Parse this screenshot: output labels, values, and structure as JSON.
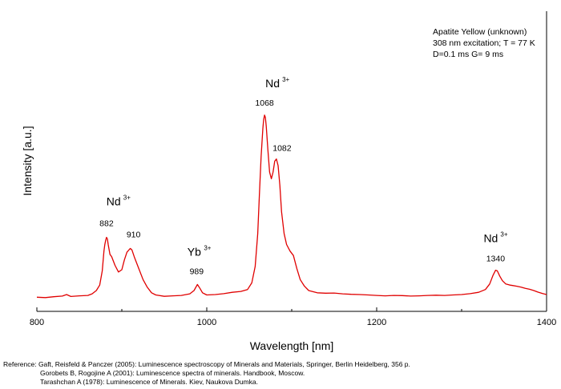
{
  "chart_data": {
    "type": "line",
    "xlabel": "Wavelength [nm]",
    "ylabel": "Intensity [a.u.]",
    "xlim": [
      800,
      1400
    ],
    "ylim": [
      0,
      100
    ],
    "x_ticks": [
      800,
      1000,
      1200,
      1400
    ],
    "x_tick_labels": [
      "800",
      "1000",
      "1200",
      "1400"
    ],
    "grid": false,
    "info_lines": [
      "Apatite Yellow (unknown)",
      "308 nm excitation; T = 77 K",
      "D=0.1 ms G= 9 ms"
    ],
    "series": [
      {
        "color": "#e00000",
        "points": [
          [
            800,
            1.0
          ],
          [
            810,
            0.8
          ],
          [
            820,
            1.2
          ],
          [
            830,
            1.5
          ],
          [
            835,
            2.2
          ],
          [
            840,
            1.3
          ],
          [
            850,
            1.6
          ],
          [
            860,
            1.8
          ],
          [
            865,
            2.5
          ],
          [
            870,
            4.0
          ],
          [
            874,
            6.5
          ],
          [
            877,
            13.0
          ],
          [
            879,
            22.0
          ],
          [
            880,
            25.0
          ],
          [
            881,
            27.0
          ],
          [
            882,
            28.3
          ],
          [
            883,
            27.5
          ],
          [
            884,
            25.0
          ],
          [
            886,
            20.5
          ],
          [
            888,
            19.5
          ],
          [
            892,
            15.5
          ],
          [
            896,
            12.5
          ],
          [
            900,
            13.5
          ],
          [
            903,
            18.0
          ],
          [
            906,
            21.5
          ],
          [
            909,
            22.8
          ],
          [
            910,
            23.2
          ],
          [
            912,
            22.5
          ],
          [
            915,
            19.0
          ],
          [
            920,
            14.0
          ],
          [
            925,
            9.0
          ],
          [
            930,
            5.5
          ],
          [
            935,
            3.0
          ],
          [
            940,
            2.0
          ],
          [
            950,
            1.4
          ],
          [
            960,
            1.6
          ],
          [
            970,
            1.8
          ],
          [
            980,
            2.5
          ],
          [
            985,
            4.0
          ],
          [
            989,
            6.8
          ],
          [
            992,
            5.0
          ],
          [
            995,
            3.0
          ],
          [
            1000,
            2.0
          ],
          [
            1010,
            2.2
          ],
          [
            1020,
            2.6
          ],
          [
            1030,
            3.2
          ],
          [
            1040,
            3.6
          ],
          [
            1048,
            4.5
          ],
          [
            1053,
            7.5
          ],
          [
            1057,
            15.0
          ],
          [
            1060,
            30.0
          ],
          [
            1062,
            48.0
          ],
          [
            1064,
            65.0
          ],
          [
            1066,
            78.0
          ],
          [
            1067,
            82.0
          ],
          [
            1068,
            84.0
          ],
          [
            1069,
            83.0
          ],
          [
            1070,
            79.0
          ],
          [
            1072,
            68.0
          ],
          [
            1074,
            58.0
          ],
          [
            1076,
            55.0
          ],
          [
            1078,
            58.0
          ],
          [
            1080,
            63.0
          ],
          [
            1082,
            64.0
          ],
          [
            1084,
            61.0
          ],
          [
            1086,
            52.0
          ],
          [
            1088,
            40.0
          ],
          [
            1091,
            30.0
          ],
          [
            1094,
            25.0
          ],
          [
            1098,
            22.0
          ],
          [
            1102,
            20.0
          ],
          [
            1106,
            14.0
          ],
          [
            1110,
            9.0
          ],
          [
            1115,
            6.0
          ],
          [
            1120,
            4.0
          ],
          [
            1130,
            3.0
          ],
          [
            1140,
            2.8
          ],
          [
            1150,
            2.9
          ],
          [
            1160,
            2.5
          ],
          [
            1170,
            2.3
          ],
          [
            1180,
            2.2
          ],
          [
            1190,
            2.0
          ],
          [
            1200,
            1.8
          ],
          [
            1210,
            1.6
          ],
          [
            1220,
            1.8
          ],
          [
            1230,
            1.7
          ],
          [
            1240,
            1.5
          ],
          [
            1250,
            1.6
          ],
          [
            1260,
            1.8
          ],
          [
            1270,
            1.9
          ],
          [
            1280,
            1.8
          ],
          [
            1290,
            2.0
          ],
          [
            1300,
            2.2
          ],
          [
            1310,
            2.6
          ],
          [
            1320,
            3.2
          ],
          [
            1328,
            4.5
          ],
          [
            1333,
            7.0
          ],
          [
            1337,
            11.0
          ],
          [
            1340,
            13.3
          ],
          [
            1342,
            13.0
          ],
          [
            1345,
            10.5
          ],
          [
            1348,
            8.5
          ],
          [
            1352,
            7.0
          ],
          [
            1357,
            6.5
          ],
          [
            1360,
            6.3
          ],
          [
            1365,
            6.0
          ],
          [
            1370,
            5.6
          ],
          [
            1375,
            5.0
          ],
          [
            1380,
            4.6
          ],
          [
            1385,
            4.0
          ],
          [
            1390,
            3.3
          ],
          [
            1395,
            2.7
          ],
          [
            1400,
            2.2
          ]
        ]
      }
    ],
    "peak_labels": [
      {
        "x": 882,
        "y": 28.3,
        "label": "882"
      },
      {
        "x": 910,
        "y": 23.2,
        "label": "910"
      },
      {
        "x": 989,
        "y": 6.8,
        "label": "989"
      },
      {
        "x": 1068,
        "y": 84.0,
        "label": "1068"
      },
      {
        "x": 1082,
        "y": 64.0,
        "label": "1082"
      },
      {
        "x": 1340,
        "y": 13.3,
        "label": "1340"
      }
    ],
    "ion_labels": [
      {
        "base": "Nd",
        "sup": "3+",
        "x": 1068,
        "y": 84.0
      },
      {
        "base": "Nd",
        "sup": "3+",
        "x": 896,
        "y": 28.3
      },
      {
        "base": "Yb",
        "sup": "3+",
        "x": 989,
        "y": 6.8
      },
      {
        "base": "Nd",
        "sup": "3+",
        "x": 1340,
        "y": 13.3
      }
    ]
  },
  "references": {
    "line1": "Reference: Gaft, Reisfeld & Panczer (2005): Luminescence spectroscopy of Minerals and Materials, Springer, Berlin Heidelberg, 356 p.",
    "line2": "Gorobets B, Rogojine A (2001): Luminescence spectra of minerals. Handbook, Moscow.",
    "line3": "Tarashchan A (1978): Luminescence of Minerals. Kiev, Naukova Dumka."
  }
}
